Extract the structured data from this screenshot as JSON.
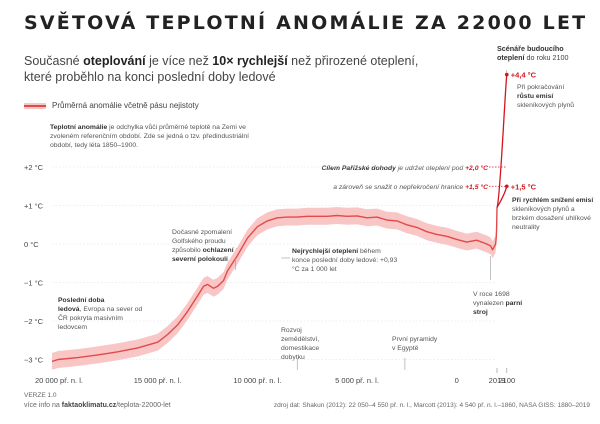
{
  "title": "SVĚTOVÁ TEPLOTNÍ ANOMÁLIE ZA 22000 LET",
  "subtitle": {
    "part1": "Současné ",
    "bold1": "oteplování",
    "part2": " je více než ",
    "bold2": "10× rychlejší",
    "part3": " než přirozené oteplení, které proběhlo na konci poslední doby ledové"
  },
  "legend": {
    "label": "Průměrná anomálie včetně pásu nejistoty"
  },
  "definition": {
    "bold": "Teplotní anomálie",
    "text": " je odchylka vůči průměrné teplotě na Zemi ve zvoleném referenčním období. Zde se jedná o tzv. předindustriální období, tedy léta 1850–1900."
  },
  "scenarios_header": {
    "line1": "Scénáře budoucího",
    "bold": "oteplení",
    "line2": " do roku 2100"
  },
  "scenario_high": {
    "value": "+4,4 °C",
    "line1": "Při pokračování",
    "bold": "růstu emisí",
    "line2": "skleníkových plynů"
  },
  "scenario_low": {
    "value": "+1,5 °C",
    "bold": "Při rychlém snížení emisí",
    "text": " skleníkových plynů a brzkém dosažení uhlíkové neutrality"
  },
  "paris": {
    "bold": "Cílem Pařížské dohody",
    "text": " je udržet oteplení pod ",
    "value": "+2,0 °C",
    "line2": "a zároveň se snažit o nepřekročení hranice ",
    "value2": "+1,5 °C"
  },
  "annotations": {
    "ice_age": {
      "bold1": "Poslední doba",
      "bold2": "ledová",
      "text": ", Evropa na sever od ČR pokryta masivním ledovcem"
    },
    "cooling": {
      "text": "Dočasné zpomalení Golfského proudu způsobilo ",
      "bold": "ochlazení na severní polokouli"
    },
    "fastest": {
      "bold": "Nejrychlejší oteplení",
      "text": " během konce poslední doby ledové: +0,93 °C za 1 000 let"
    },
    "agriculture": {
      "text": "Rozvoj zemědělství, domestikace dobytku"
    },
    "pyramids": {
      "text": "První pyramidy v Egyptě"
    },
    "steam": {
      "text": "V roce 1698 vynalezen ",
      "bold": "parní stroj"
    }
  },
  "footer": {
    "version": "VERZE 1.0",
    "more_prefix": "více info na ",
    "more_bold": "faktaoklimatu.cz",
    "more_rest": "/teplota-22000-let",
    "source": "zdroj dat: Shakun (2012): 22 050–4 550 př. n. l., Marcott (2013): 4 540 př. n. l.–1860, NASA GISS: 1880–2019"
  },
  "chart_data": {
    "type": "line",
    "title": "SVĚTOVÁ TEPLOTNÍ ANOMÁLIE ZA 22000 LET",
    "xlabel": "",
    "ylabel": "",
    "x_unit": "year (negative = př. n. l.)",
    "xlim": [
      -20300,
      2110
    ],
    "ylim": [
      -3.3,
      2.4
    ],
    "x_ticks": [
      {
        "x": -20000,
        "label": "20 000 př. n. l."
      },
      {
        "x": -15000,
        "label": "15 000 př. n. l."
      },
      {
        "x": -10000,
        "label": "10 000 př. n. l."
      },
      {
        "x": -5000,
        "label": "5 000 př. n. l."
      },
      {
        "x": 0,
        "label": "0"
      },
      {
        "x": 2019,
        "label": "2019"
      },
      {
        "x": 2100,
        "label": "2100"
      }
    ],
    "y_ticks": [
      {
        "y": 2,
        "label": "+2 °C"
      },
      {
        "y": 1,
        "label": "+1 °C"
      },
      {
        "y": 0,
        "label": "0 °C"
      },
      {
        "y": -1,
        "label": "−1 °C"
      },
      {
        "y": -2,
        "label": "−2 °C"
      },
      {
        "y": -3,
        "label": "−3 °C"
      }
    ],
    "series": [
      {
        "name": "Průměrná anomálie včetně pásu nejistoty",
        "x": [
          -20300,
          -20000,
          -19000,
          -18000,
          -17000,
          -16000,
          -15000,
          -14500,
          -14000,
          -13500,
          -13000,
          -12700,
          -12500,
          -12200,
          -12000,
          -11700,
          -11500,
          -11000,
          -10500,
          -10000,
          -9500,
          -9000,
          -8500,
          -8000,
          -7500,
          -7000,
          -6500,
          -6000,
          -5500,
          -5000,
          -4500,
          -4000,
          -3500,
          -3000,
          -2500,
          -2000,
          -1500,
          -1000,
          -500,
          0,
          500,
          1000,
          1500,
          1700,
          1800,
          1900,
          1950,
          1980,
          2000,
          2019
        ],
        "y": [
          -3.05,
          -3.0,
          -2.95,
          -2.88,
          -2.8,
          -2.7,
          -2.55,
          -2.35,
          -2.1,
          -1.75,
          -1.35,
          -1.1,
          -1.05,
          -1.15,
          -1.1,
          -0.95,
          -0.7,
          -0.3,
          0.15,
          0.45,
          0.6,
          0.68,
          0.7,
          0.7,
          0.72,
          0.72,
          0.72,
          0.74,
          0.72,
          0.73,
          0.68,
          0.7,
          0.62,
          0.6,
          0.5,
          0.43,
          0.32,
          0.25,
          0.2,
          0.12,
          0.05,
          0.1,
          0.0,
          -0.05,
          -0.15,
          -0.05,
          0.0,
          0.15,
          0.4,
          0.95
        ],
        "uncertainty": 0.22
      }
    ],
    "scenarios": [
      {
        "year": 2100,
        "value": 4.4,
        "label": "+4,4 °C"
      },
      {
        "year": 2100,
        "value": 1.5,
        "label": "+1,5 °C"
      }
    ],
    "reference_lines": [
      {
        "value": 2.0,
        "label": "+2,0 °C"
      },
      {
        "value": 1.5,
        "label": "+1,5 °C"
      }
    ],
    "colors": {
      "line": "#e24a4a",
      "band": "#f9c6c6",
      "scenario": "#d2151e",
      "grid": "#dddddd"
    },
    "grid": true
  }
}
